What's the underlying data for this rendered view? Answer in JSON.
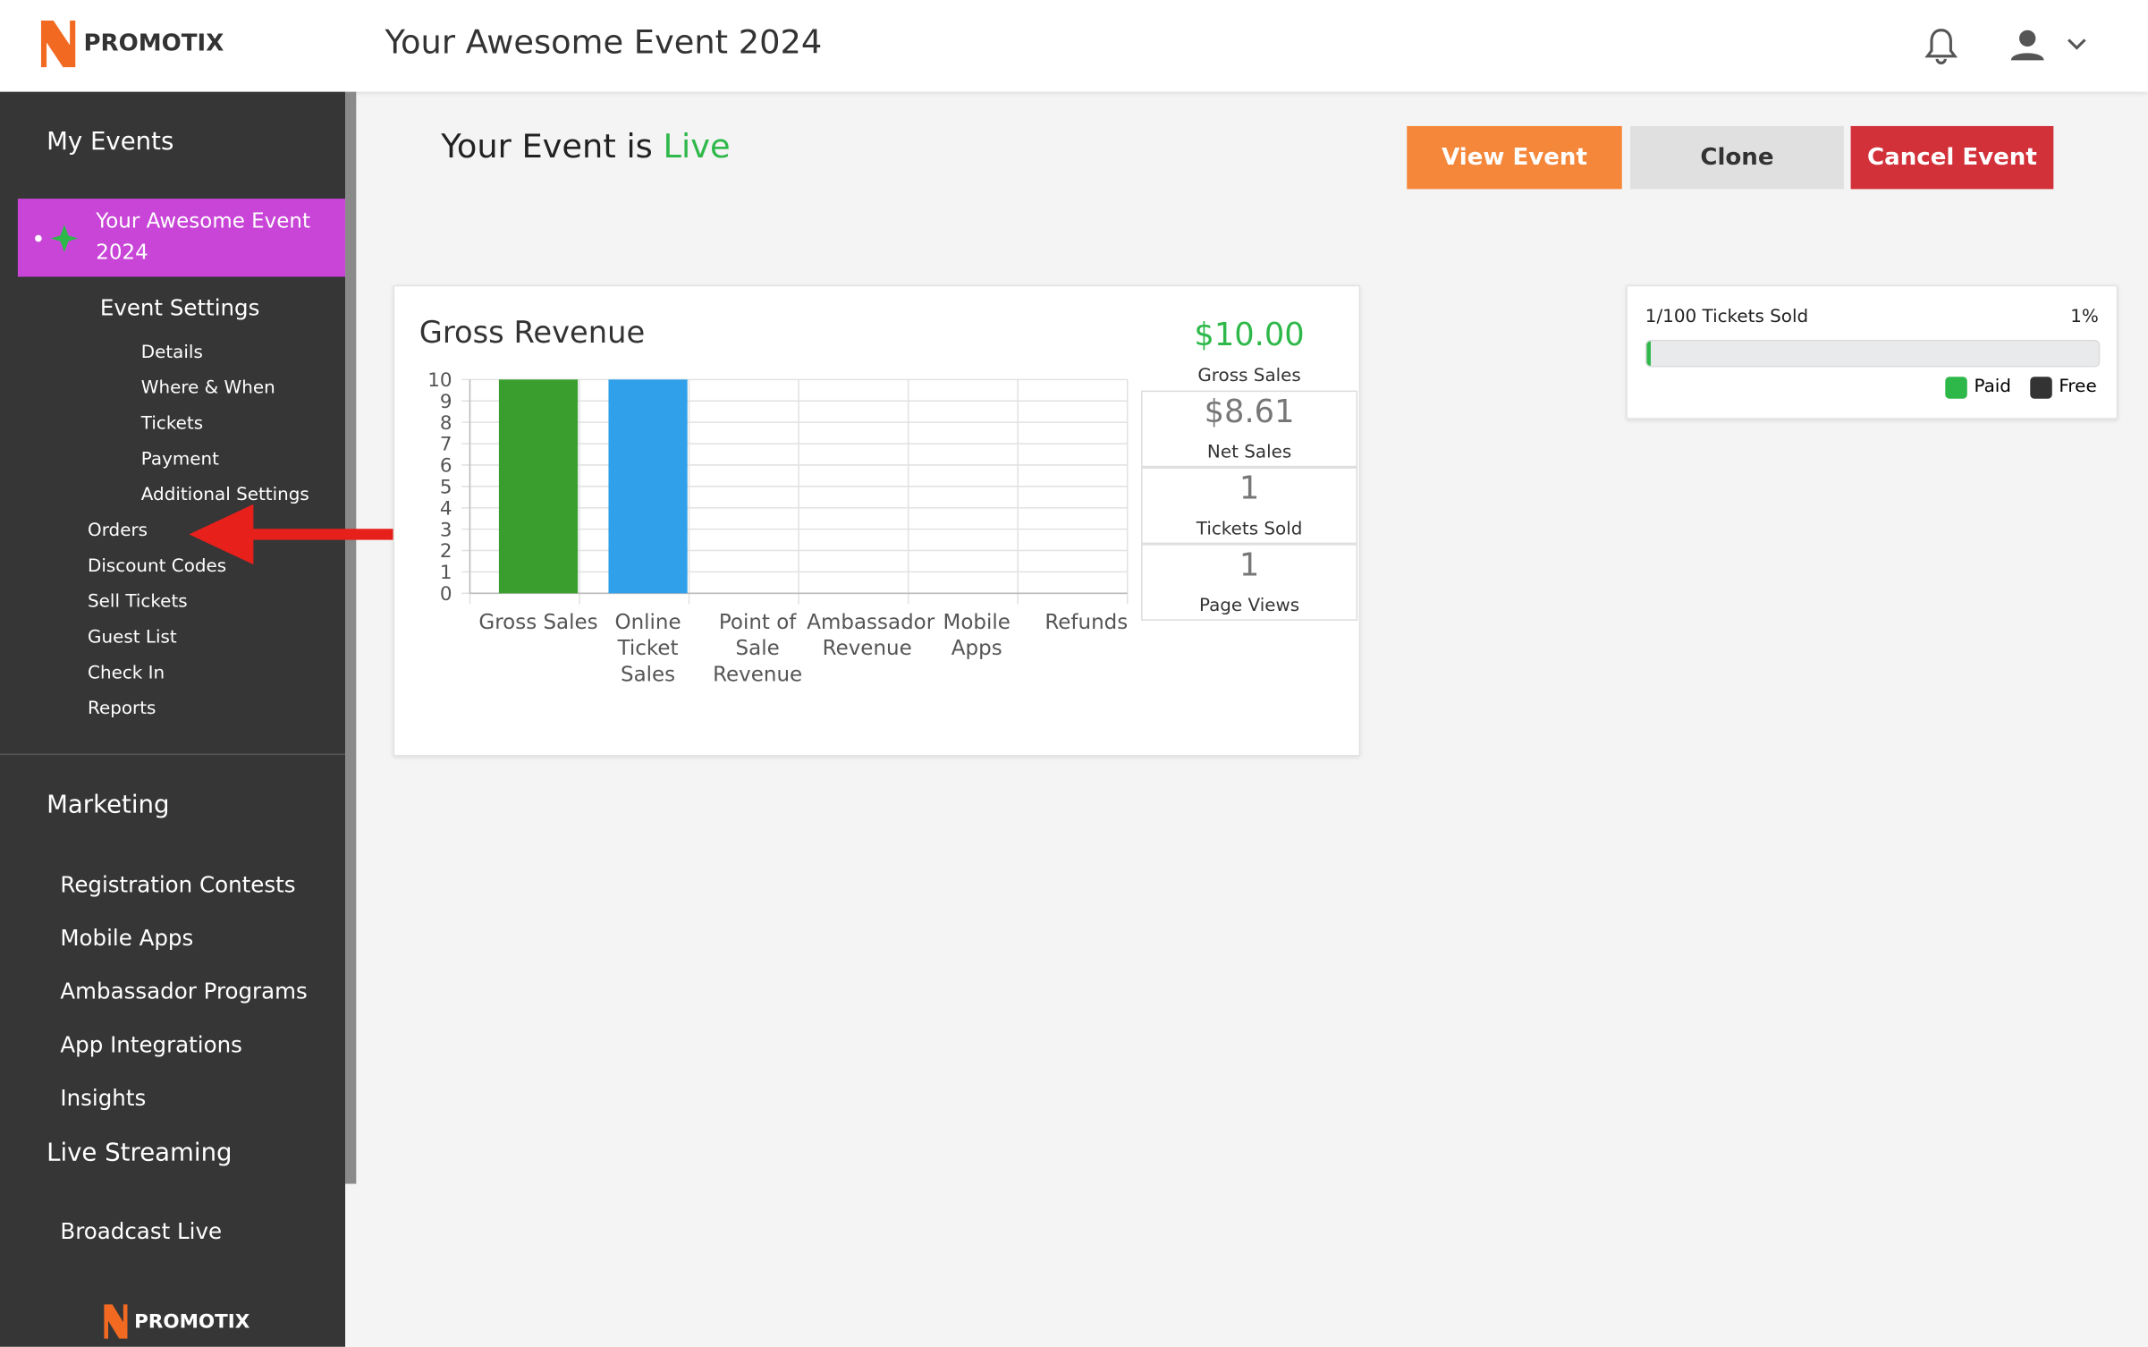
{
  "header": {
    "brand": "PROMOTIX",
    "title": "Your Awesome Event 2024"
  },
  "sidebar": {
    "section1": "My Events",
    "active_event": "Your Awesome Event 2024",
    "settings": "Event Settings",
    "settings_items": [
      "Details",
      "Where & When",
      "Tickets",
      "Payment",
      "Additional Settings"
    ],
    "event_items": [
      "Orders",
      "Discount Codes",
      "Sell Tickets",
      "Guest List",
      "Check In",
      "Reports"
    ],
    "section2": "Marketing",
    "marketing_items": [
      "Registration Contests",
      "Mobile Apps",
      "Ambassador Programs",
      "App Integrations",
      "Insights"
    ],
    "section3": "Live Streaming",
    "streaming_items": [
      "Broadcast Live"
    ],
    "footer_brand": "PROMOTIX"
  },
  "main": {
    "status_prefix": "Your Event is",
    "status": "Live",
    "buttons": [
      "View Event",
      "Clone",
      "Cancel Event"
    ],
    "stats": [
      {
        "value": "$10.00",
        "label": "Gross Sales"
      },
      {
        "value": "$8.61",
        "label": "Net Sales"
      },
      {
        "value": "1",
        "label": "Tickets Sold"
      },
      {
        "value": "1",
        "label": "Page Views"
      }
    ],
    "tickets": {
      "label": "1/100 Tickets Sold",
      "progress": {
        "value": 1,
        "label": "1%"
      },
      "legend": [
        "Paid",
        "Free"
      ]
    }
  },
  "chart_data": {
    "type": "bar",
    "title": "Gross Revenue",
    "categories": [
      "Gross Sales",
      "Online Ticket Sales",
      "Point of Sale Revenue",
      "Ambassador Revenue",
      "Mobile Apps",
      "Refunds"
    ],
    "values": [
      10,
      10,
      0,
      0,
      0,
      0
    ],
    "colors": [
      "#3a9e2e",
      "#2fa0e9"
    ],
    "ylim": [
      0,
      10
    ],
    "yticks": [
      0,
      1,
      2,
      3,
      4,
      5,
      6,
      7,
      8,
      9,
      10
    ],
    "grid": true
  }
}
